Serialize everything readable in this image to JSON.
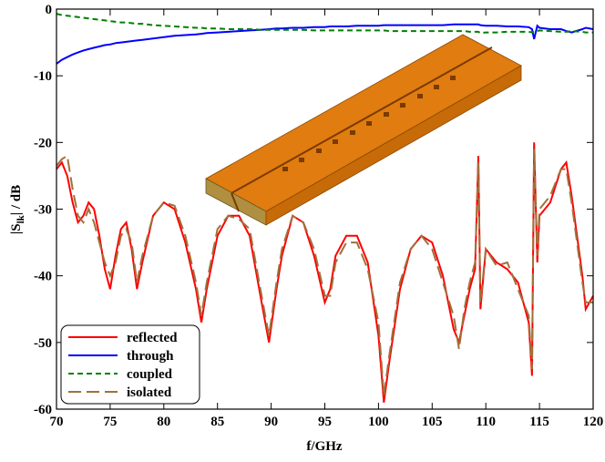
{
  "chart_data": {
    "type": "line",
    "xlabel": "f/GHz",
    "ylabel": [
      "|S",
      "lk",
      "| / dB"
    ],
    "x": [
      70,
      70.5,
      71,
      71.5,
      72,
      72.5,
      73,
      73.5,
      74,
      74.5,
      75,
      75.5,
      76,
      76.5,
      77,
      77.5,
      78,
      79,
      80,
      81,
      82,
      83,
      83.5,
      84,
      85,
      86,
      87,
      88,
      89,
      89.8,
      90.5,
      91,
      92,
      93,
      94,
      95,
      95.5,
      96,
      97,
      98,
      99,
      100,
      100.5,
      101,
      102,
      103,
      104,
      105,
      106,
      107,
      107.5,
      108,
      108.5,
      109,
      109.3,
      109.5,
      110,
      111,
      112,
      113,
      114,
      114.3,
      114.5,
      114.8,
      115,
      116,
      117,
      117.5,
      118,
      119,
      119.3,
      120
    ],
    "series": [
      {
        "name": "reflected",
        "color": "#ff0000",
        "dash": "solid",
        "values": [
          -24,
          -23,
          -25,
          -29,
          -32,
          -31,
          -29,
          -30,
          -34,
          -39,
          -42,
          -37,
          -33,
          -32,
          -36,
          -42,
          -38,
          -31,
          -29,
          -30,
          -35,
          -42,
          -47,
          -42,
          -34,
          -31,
          -31,
          -34,
          -43,
          -50,
          -42,
          -37,
          -31,
          -32,
          -37,
          -44,
          -42,
          -37,
          -34,
          -34,
          -38,
          -49,
          -59,
          -53,
          -42,
          -36,
          -34,
          -35,
          -40,
          -48,
          -50,
          -46,
          -42,
          -39,
          -22,
          -45,
          -36,
          -38,
          -39,
          -41,
          -47,
          -55,
          -20,
          -38,
          -31,
          -29,
          -24,
          -23,
          -28,
          -40,
          -45,
          -43
        ]
      },
      {
        "name": "through",
        "color": "#0000ff",
        "dash": "solid",
        "values": [
          -8.2,
          -7.6,
          -7.2,
          -6.8,
          -6.5,
          -6.2,
          -6,
          -5.8,
          -5.6,
          -5.4,
          -5.3,
          -5.1,
          -5,
          -4.9,
          -4.8,
          -4.7,
          -4.6,
          -4.4,
          -4.2,
          -4,
          -3.9,
          -3.8,
          -3.7,
          -3.6,
          -3.5,
          -3.4,
          -3.3,
          -3.2,
          -3.1,
          -3,
          -2.9,
          -2.9,
          -2.8,
          -2.8,
          -2.7,
          -2.7,
          -2.6,
          -2.6,
          -2.6,
          -2.5,
          -2.5,
          -2.5,
          -2.4,
          -2.4,
          -2.4,
          -2.4,
          -2.4,
          -2.4,
          -2.4,
          -2.3,
          -2.3,
          -2.3,
          -2.3,
          -2.3,
          -2.3,
          -2.4,
          -2.5,
          -2.5,
          -2.6,
          -2.6,
          -2.7,
          -3,
          -4.5,
          -2.5,
          -2.8,
          -3,
          -3,
          -3.3,
          -3.5,
          -3,
          -2.8,
          -3
        ]
      },
      {
        "name": "coupled",
        "color": "#008000",
        "dash": "dashed",
        "values": [
          -0.7,
          -0.9,
          -1,
          -1.1,
          -1.2,
          -1.3,
          -1.4,
          -1.5,
          -1.6,
          -1.7,
          -1.8,
          -1.9,
          -2,
          -2,
          -2.1,
          -2.2,
          -2.2,
          -2.4,
          -2.5,
          -2.6,
          -2.7,
          -2.8,
          -2.8,
          -2.9,
          -2.9,
          -3,
          -3,
          -3,
          -3.1,
          -3.1,
          -3.1,
          -3.1,
          -3.1,
          -3.1,
          -3.2,
          -3.2,
          -3.2,
          -3.2,
          -3.2,
          -3.2,
          -3.2,
          -3.2,
          -3.2,
          -3.3,
          -3.3,
          -3.3,
          -3.3,
          -3.3,
          -3.3,
          -3.3,
          -3.3,
          -3.3,
          -3.4,
          -3.4,
          -3.4,
          -3.6,
          -3.5,
          -3.5,
          -3.4,
          -3.4,
          -3.4,
          -3.5,
          -3.3,
          -3.3,
          -3.2,
          -3.3,
          -3.4,
          -3.4,
          -3.3,
          -3.4,
          -3.5,
          -3.5
        ]
      },
      {
        "name": "isolated",
        "color": "#a0703c",
        "dash": "longdash",
        "values": [
          -23.5,
          -22.5,
          -22,
          -27,
          -31,
          -32,
          -30,
          -32,
          -35,
          -38,
          -40,
          -38,
          -34,
          -33,
          -35,
          -41,
          -37,
          -31,
          -29,
          -29.5,
          -34,
          -41,
          -46,
          -41,
          -33,
          -31,
          -31.5,
          -33,
          -42,
          -49,
          -41,
          -36,
          -31,
          -32,
          -36,
          -43,
          -43,
          -38,
          -35,
          -35,
          -39,
          -47,
          -58,
          -52,
          -41,
          -36,
          -34,
          -36,
          -41,
          -46,
          -51,
          -45,
          -41,
          -38,
          -23,
          -44,
          -36,
          -38.5,
          -38,
          -42,
          -46,
          -54,
          -21,
          -37,
          -30,
          -28,
          -24,
          -24,
          -29,
          -41,
          -44,
          -44
        ]
      }
    ],
    "xlim": [
      70,
      120
    ],
    "ylim": [
      -60,
      0
    ],
    "xticks": [
      70,
      75,
      80,
      85,
      90,
      95,
      100,
      105,
      110,
      115,
      120
    ],
    "yticks": [
      -60,
      -50,
      -40,
      -30,
      -20,
      -10,
      0
    ],
    "legend": "lower left"
  }
}
